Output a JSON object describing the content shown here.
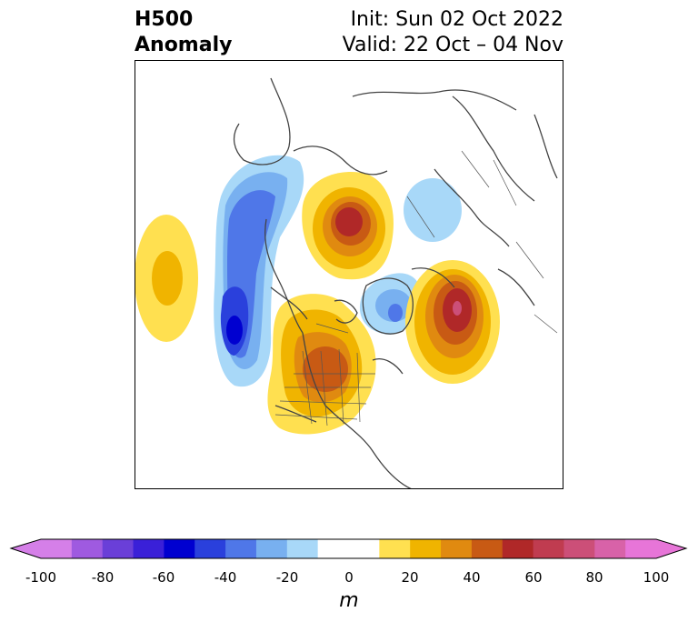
{
  "title": {
    "left_line1": "H500",
    "left_line2": "Anomaly",
    "right_line1": "Init: Sun 02 Oct 2022",
    "right_line2": "Valid: 22 Oct – 04 Nov"
  },
  "colorbar": {
    "unit": "m",
    "ticks": [
      "-100",
      "-80",
      "-60",
      "-40",
      "-20",
      "0",
      "20",
      "40",
      "60",
      "80",
      "100"
    ],
    "levels": [
      -100,
      -90,
      -80,
      -70,
      -60,
      -50,
      -40,
      -30,
      -20,
      -10,
      10,
      20,
      30,
      40,
      50,
      60,
      70,
      80,
      90,
      100
    ],
    "colors": [
      "#d57fe8",
      "#9f5ae0",
      "#6a3fd8",
      "#3a20d8",
      "#0000d0",
      "#2a40dc",
      "#4f77e8",
      "#78b0f0",
      "#a8d8f8",
      "#ffffff",
      "#ffe050",
      "#f0b400",
      "#e08a10",
      "#c85a14",
      "#b02828",
      "#c03c50",
      "#cc4f78",
      "#d862a8",
      "#e775d8"
    ],
    "under_color": "#d57fe8",
    "over_color": "#e775d8"
  },
  "anomalies": [
    {
      "region": "central north pacific",
      "sign": "positive",
      "peak_m": 30
    },
    {
      "region": "gulf of alaska / nw pacific coast",
      "sign": "negative",
      "peak_m": -60
    },
    {
      "region": "siberian arctic",
      "sign": "positive",
      "peak_m": 60
    },
    {
      "region": "scandinavia",
      "sign": "negative",
      "peak_m": -20
    },
    {
      "region": "greenland / baffin",
      "sign": "negative",
      "peak_m": -40
    },
    {
      "region": "north atlantic",
      "sign": "positive",
      "peak_m": 70
    },
    {
      "region": "central canada / northern us",
      "sign": "positive",
      "peak_m": 50
    }
  ]
}
